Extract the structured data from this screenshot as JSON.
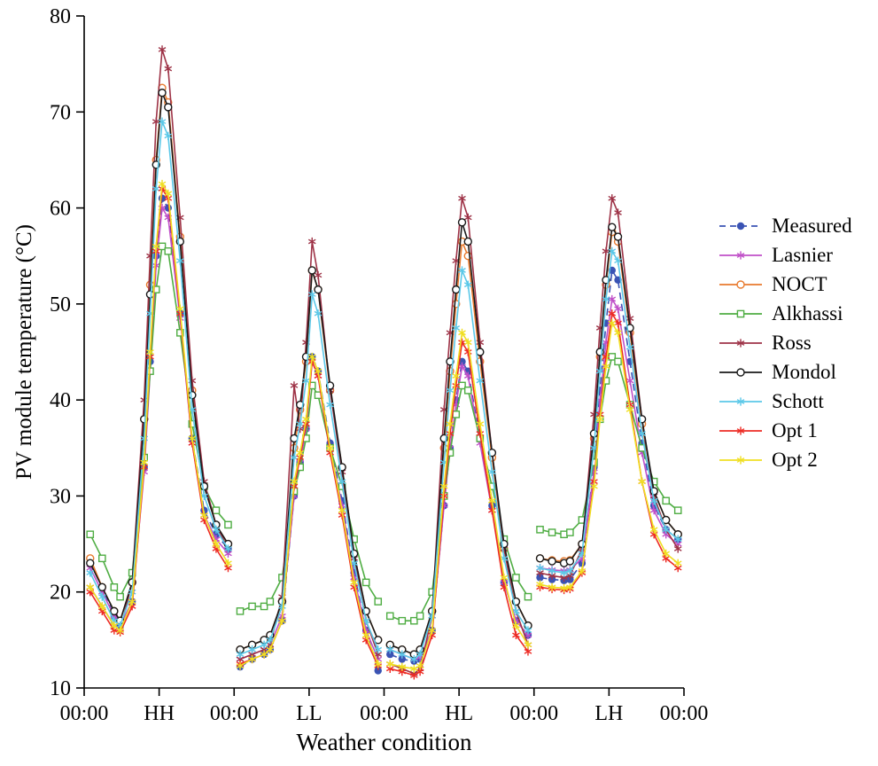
{
  "figure": {
    "xlabel": "Weather condition",
    "ylabel": "PV module temperature (°C)"
  },
  "chart_data": {
    "type": "line",
    "title": "",
    "xlabel": "Weather condition",
    "ylabel": "PV module temperature (°C)",
    "ylim": [
      10,
      80
    ],
    "yticks": [
      10,
      20,
      30,
      40,
      50,
      60,
      70,
      80
    ],
    "xticklabels": [
      "00:00",
      "HH",
      "00:00",
      "LL",
      "00:00",
      "HL",
      "00:00",
      "LH",
      "00:00"
    ],
    "xtick_positions": [
      0,
      0.5,
      1,
      1.5,
      2,
      2.5,
      3,
      3.5,
      4
    ],
    "grid": false,
    "legend_position": "right-outside",
    "day_labels": [
      "HH",
      "LL",
      "HL",
      "LH"
    ],
    "hours": [
      0,
      2,
      4,
      5,
      7,
      9,
      10,
      11,
      12,
      13,
      15,
      17,
      19,
      21,
      23
    ],
    "series": [
      {
        "name": "Measured",
        "color": "#3a53b4",
        "line": "dashed",
        "marker": "circle-filled",
        "days": [
          [
            23,
            20.5,
            17.5,
            16.5,
            19,
            33,
            44,
            55,
            61,
            60,
            49,
            36,
            28.5,
            26,
            24.5
          ],
          [
            12.2,
            13,
            13.5,
            14,
            17,
            30,
            33.5,
            37,
            44.5,
            43,
            35.5,
            29.5,
            22,
            16,
            11.8
          ],
          [
            13.5,
            13,
            12.8,
            13,
            16,
            29,
            35,
            40,
            44,
            43,
            36,
            29,
            21,
            17,
            15.5
          ],
          [
            21.5,
            21.3,
            21.2,
            21.3,
            23,
            33,
            41,
            48,
            53.5,
            52.5,
            44,
            35.5,
            29,
            26.5,
            25.5
          ]
        ]
      },
      {
        "name": "Lasnier",
        "color": "#c050c8",
        "line": "solid",
        "marker": "asterisk",
        "days": [
          [
            22.5,
            20,
            17.5,
            16.5,
            19,
            32.5,
            43,
            54,
            60,
            59,
            48.5,
            35.5,
            28,
            25.5,
            24
          ],
          [
            13,
            13.5,
            14,
            14.5,
            17.5,
            30,
            33.5,
            37,
            44,
            42.5,
            35,
            29,
            21.5,
            16,
            13
          ],
          [
            14,
            13.5,
            13,
            13.2,
            16,
            29,
            35,
            39.5,
            43.5,
            42.5,
            35.5,
            28.5,
            21,
            17,
            15.5
          ],
          [
            22.5,
            22.3,
            22.2,
            22.3,
            23.5,
            32.5,
            40,
            46,
            50.5,
            49.5,
            42,
            34.5,
            28.5,
            26,
            25
          ]
        ]
      },
      {
        "name": "NOCT",
        "color": "#e87a2e",
        "line": "solid",
        "marker": "circle-open",
        "days": [
          [
            23.5,
            20.5,
            18,
            17,
            21,
            38,
            52,
            65,
            72.5,
            71,
            57,
            41,
            31,
            27,
            25
          ],
          [
            14,
            14.5,
            15,
            15.5,
            19,
            35,
            39,
            44,
            53.5,
            51.5,
            41,
            33,
            24,
            18,
            15
          ],
          [
            14.5,
            14,
            13.5,
            14,
            18,
            35,
            43,
            50,
            56.5,
            55,
            44,
            34,
            24.5,
            19,
            16.5
          ],
          [
            23.5,
            23.3,
            23.2,
            23.3,
            25,
            36,
            44.5,
            52,
            57.5,
            56.5,
            47,
            37.5,
            30.5,
            27.5,
            26
          ]
        ]
      },
      {
        "name": "Alkhassi",
        "color": "#4fad43",
        "line": "solid",
        "marker": "square-open",
        "days": [
          [
            26,
            23.5,
            20.5,
            19.5,
            22,
            34,
            43,
            51.5,
            56,
            55.5,
            47,
            37.5,
            31,
            28.5,
            27
          ],
          [
            18,
            18.5,
            18.5,
            19,
            21.5,
            30.5,
            33,
            36,
            41.5,
            40.5,
            35,
            31,
            25.5,
            21,
            19
          ],
          [
            17.5,
            17,
            17,
            17.5,
            20,
            30,
            34.5,
            38.5,
            41.5,
            41,
            36,
            31,
            25.5,
            21.5,
            19.5
          ],
          [
            26.5,
            26.2,
            26,
            26.2,
            27.5,
            33.5,
            38,
            42,
            44.5,
            44,
            39.5,
            35,
            31.5,
            29.5,
            28.5
          ]
        ]
      },
      {
        "name": "Ross",
        "color": "#9e3347",
        "line": "solid",
        "marker": "asterisk",
        "days": [
          [
            20.5,
            18.5,
            16.5,
            16,
            21,
            40,
            55,
            69,
            76.5,
            74.5,
            59,
            42,
            31.5,
            27,
            24.5
          ],
          [
            13,
            13.5,
            14,
            14.5,
            19.5,
            41.5,
            37,
            46,
            56.5,
            53,
            41,
            32.5,
            23.5,
            17,
            13.5
          ],
          [
            12.5,
            12,
            11.5,
            12,
            17.5,
            39,
            47,
            54.5,
            61,
            59,
            46,
            34.5,
            24.5,
            18,
            14.5
          ],
          [
            22,
            21.7,
            21.5,
            21.7,
            24.5,
            38.5,
            47.5,
            55.5,
            61,
            59.5,
            48.5,
            38,
            30,
            26.5,
            24.5
          ]
        ]
      },
      {
        "name": "Mondol",
        "color": "#1a1a1a",
        "line": "solid",
        "marker": "circle-open",
        "days": [
          [
            23,
            20.5,
            18,
            17,
            21,
            38,
            51,
            64.5,
            72,
            70.5,
            56.5,
            40.5,
            31,
            27,
            25
          ],
          [
            14,
            14.5,
            15,
            15.5,
            19,
            36,
            39.5,
            44.5,
            53.5,
            51.5,
            41.5,
            33,
            24,
            18,
            15
          ],
          [
            14.5,
            14,
            13.5,
            14,
            18,
            36,
            44,
            51.5,
            58.5,
            56.5,
            45,
            34.5,
            25,
            19,
            16.5
          ],
          [
            23.5,
            23.2,
            23,
            23.2,
            25,
            36.5,
            45,
            52.5,
            58,
            57,
            47.5,
            38,
            30.5,
            27.5,
            26
          ]
        ]
      },
      {
        "name": "Schott",
        "color": "#5bc8e8",
        "line": "solid",
        "marker": "asterisk",
        "days": [
          [
            22,
            19.5,
            17,
            16.5,
            20,
            36,
            49,
            62,
            69,
            67.5,
            54.5,
            39,
            30,
            26.5,
            24.5
          ],
          [
            13.5,
            14,
            14.5,
            15,
            18.5,
            34,
            37.5,
            42,
            51,
            49,
            39.5,
            31.5,
            23,
            17,
            14
          ],
          [
            14,
            13.5,
            13,
            13.5,
            17.5,
            33.5,
            41,
            47.5,
            53.5,
            52,
            42,
            32.5,
            23.5,
            18,
            16
          ],
          [
            22.5,
            22.2,
            22,
            22.2,
            24,
            35,
            43,
            50.5,
            55.5,
            54.5,
            45.5,
            36.5,
            29.5,
            26.5,
            25.5
          ]
        ]
      },
      {
        "name": "Opt 1",
        "color": "#ed2b24",
        "line": "solid",
        "marker": "asterisk",
        "days": [
          [
            20,
            18,
            16,
            15.8,
            18.5,
            33,
            44.5,
            55.5,
            62,
            61,
            49,
            35.5,
            27.5,
            24.5,
            22.5
          ],
          [
            12.5,
            13,
            13.5,
            14,
            17,
            31,
            34,
            37.5,
            44,
            42.5,
            34.5,
            28,
            20.5,
            15,
            12.3
          ],
          [
            12,
            11.7,
            11.3,
            11.7,
            15.5,
            30,
            36.5,
            41.5,
            46,
            45,
            36.5,
            28.5,
            20.5,
            15.5,
            13.8
          ],
          [
            20.5,
            20.3,
            20.2,
            20.3,
            22,
            31.5,
            38.5,
            44.5,
            49,
            48,
            39.5,
            31.5,
            26,
            23.5,
            22.5
          ]
        ]
      },
      {
        "name": "Opt 2",
        "color": "#f0df22",
        "line": "solid",
        "marker": "asterisk",
        "days": [
          [
            20.5,
            18.5,
            16.5,
            16,
            19,
            33.5,
            45,
            56,
            62.5,
            61.5,
            49.5,
            36,
            28,
            25,
            23
          ],
          [
            12.3,
            13,
            13.5,
            14,
            17,
            31.5,
            34.5,
            38,
            44.5,
            43,
            35,
            28.5,
            21,
            15.5,
            12.5
          ],
          [
            12.5,
            12.2,
            12,
            12.3,
            16,
            31,
            37.5,
            42.5,
            47,
            46,
            37.5,
            29.5,
            21.5,
            16.5,
            14.5
          ],
          [
            20.8,
            20.5,
            20.4,
            20.5,
            22.2,
            31,
            38,
            43.5,
            48,
            47,
            39,
            31.5,
            26.5,
            24,
            23
          ]
        ]
      }
    ]
  }
}
